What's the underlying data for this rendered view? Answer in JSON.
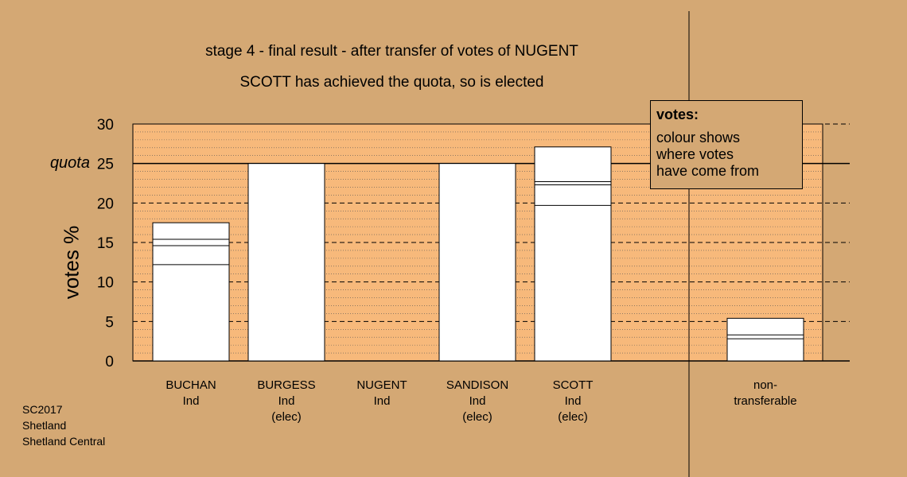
{
  "titles": {
    "line1": "stage 4 - final result - after transfer of votes of NUGENT",
    "line2": "SCOTT has achieved the quota, so is elected"
  },
  "colors": {
    "background": "#d4a874",
    "plot_area": "#f7b97b",
    "bar_fill": "#ffffff"
  },
  "chart_data": {
    "type": "bar",
    "ylabel": "votes %",
    "ylim": [
      0,
      30
    ],
    "yticks": [
      0,
      5,
      10,
      15,
      20,
      25,
      30
    ],
    "quota": 25,
    "quota_label": "quota",
    "grid": true,
    "categories": [
      {
        "name": "BUCHAN",
        "party": "Ind",
        "status": "",
        "value": 17.5,
        "segments": [
          12.2,
          14.6,
          15.4
        ]
      },
      {
        "name": "BURGESS",
        "party": "Ind",
        "status": "(elec)",
        "value": 25.0,
        "segments": []
      },
      {
        "name": "NUGENT",
        "party": "Ind",
        "status": "",
        "value": 0,
        "segments": []
      },
      {
        "name": "SANDISON",
        "party": "Ind",
        "status": "(elec)",
        "value": 25.0,
        "segments": []
      },
      {
        "name": "SCOTT",
        "party": "Ind",
        "status": "(elec)",
        "value": 27.1,
        "segments": [
          19.7,
          22.3,
          22.7
        ]
      }
    ],
    "nontransferable": {
      "label_line1": "non-",
      "label_line2": "transferable",
      "value": 5.4,
      "segments": [
        2.8,
        3.3
      ]
    }
  },
  "legend": {
    "title": "votes:",
    "lines": [
      "colour shows",
      "where votes",
      "have come from"
    ]
  },
  "footer": {
    "lines": [
      "SC2017",
      "Shetland",
      "Shetland Central"
    ]
  }
}
